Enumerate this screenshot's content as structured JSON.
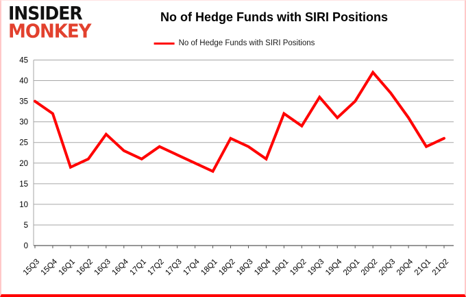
{
  "logo": {
    "line1": "INSIDER",
    "line2": "MONKEY"
  },
  "header": {
    "title": "No of Hedge Funds with SIRI Positions"
  },
  "legend": {
    "label": "No of Hedge Funds with SIRI Positions",
    "line_color": "#ff0000"
  },
  "colors": {
    "series_line": "#ff0000",
    "gridline": "#a6a6a6",
    "axis_line": "#595959",
    "tick_label": "#000000",
    "logo_top": "#111111",
    "logo_bottom": "#e2412e",
    "frame_glow": "#ff0000"
  },
  "chart_data": {
    "type": "line",
    "title": "No of Hedge Funds with SIRI Positions",
    "xlabel": "",
    "ylabel": "",
    "ylim": [
      0,
      45
    ],
    "ytick_step": 5,
    "grid": true,
    "legend_position": "top-center",
    "categories": [
      "15Q3",
      "15Q4",
      "16Q1",
      "16Q2",
      "16Q3",
      "16Q4",
      "17Q1",
      "17Q2",
      "17Q3",
      "17Q4",
      "18Q1",
      "18Q2",
      "18Q3",
      "18Q4",
      "19Q1",
      "19Q2",
      "19Q3",
      "19Q4",
      "20Q1",
      "20Q2",
      "20Q3",
      "20Q4",
      "21Q1",
      "21Q2"
    ],
    "series": [
      {
        "name": "No of Hedge Funds with SIRI Positions",
        "color": "#ff0000",
        "values": [
          35,
          32,
          19,
          21,
          27,
          23,
          21,
          24,
          22,
          20,
          18,
          26,
          24,
          21,
          32,
          29,
          36,
          31,
          35,
          42,
          37,
          31,
          24,
          26
        ]
      }
    ]
  }
}
